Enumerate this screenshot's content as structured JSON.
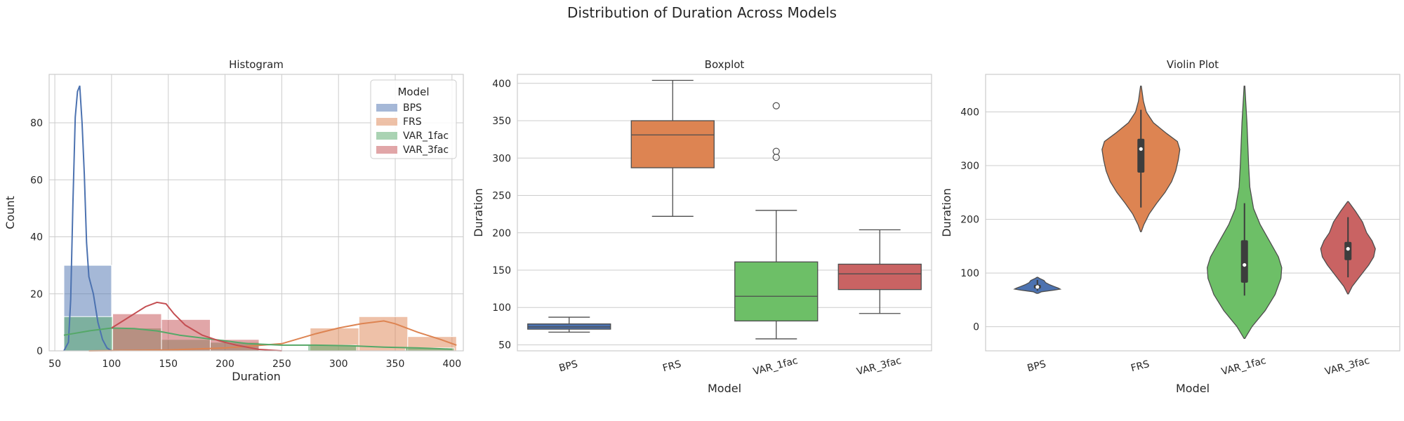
{
  "figure": {
    "title": "Distribution of Duration Across Models"
  },
  "colors": {
    "BPS": "#4c72b0",
    "FRS": "#dd8452",
    "VAR_1fac": "#55a868",
    "VAR_3fac": "#c44e52",
    "box_BPS": "#4c72b0",
    "box_FRS": "#dd8452",
    "box_VAR_1fac": "#6dbf67",
    "box_VAR_3fac": "#c96363",
    "grid": "#cccccc",
    "line": "#4d4d4d"
  },
  "chart_data": [
    {
      "type": "histogram",
      "title": "Histogram",
      "xlabel": "Duration",
      "ylabel": "Count",
      "xlim": [
        45,
        410
      ],
      "ylim": [
        0,
        97
      ],
      "xticks": [
        50,
        100,
        150,
        200,
        250,
        300,
        350,
        400
      ],
      "yticks": [
        0,
        20,
        40,
        60,
        80
      ],
      "grid": true,
      "legend": {
        "title": "Model",
        "position": "top-right",
        "entries": [
          "BPS",
          "FRS",
          "VAR_1fac",
          "VAR_3fac"
        ]
      },
      "series": [
        {
          "name": "BPS",
          "bins": [
            {
              "x0": 58,
              "x1": 100,
              "count": 30
            }
          ],
          "kde": [
            [
              58,
              0
            ],
            [
              62,
              3
            ],
            [
              64,
              18
            ],
            [
              66,
              52
            ],
            [
              68,
              82
            ],
            [
              70,
              91
            ],
            [
              72,
              93
            ],
            [
              74,
              80
            ],
            [
              76,
              62
            ],
            [
              78,
              38
            ],
            [
              80,
              26
            ],
            [
              84,
              20
            ],
            [
              88,
              10
            ],
            [
              92,
              4
            ],
            [
              96,
              1
            ],
            [
              100,
              0
            ]
          ]
        },
        {
          "name": "FRS",
          "bins": [
            {
              "x0": 275,
              "x1": 318,
              "count": 8
            },
            {
              "x0": 318,
              "x1": 361,
              "count": 12
            },
            {
              "x0": 361,
              "x1": 404,
              "count": 5
            }
          ],
          "kde": [
            [
              80,
              0
            ],
            [
              150,
              0.3
            ],
            [
              200,
              1
            ],
            [
              250,
              2.5
            ],
            [
              280,
              6
            ],
            [
              300,
              8
            ],
            [
              320,
              9.5
            ],
            [
              340,
              10.5
            ],
            [
              350,
              9.5
            ],
            [
              370,
              6.5
            ],
            [
              390,
              4
            ],
            [
              404,
              2
            ]
          ]
        },
        {
          "name": "VAR_1fac",
          "bins": [
            {
              "x0": 58,
              "x1": 101,
              "count": 12
            },
            {
              "x0": 101,
              "x1": 144,
              "count": 8
            },
            {
              "x0": 144,
              "x1": 187,
              "count": 4
            },
            {
              "x0": 187,
              "x1": 230,
              "count": 3
            },
            {
              "x0": 273,
              "x1": 316,
              "count": 2
            },
            {
              "x0": 359,
              "x1": 402,
              "count": 1
            }
          ],
          "kde": [
            [
              58,
              5.5
            ],
            [
              80,
              7
            ],
            [
              100,
              8
            ],
            [
              120,
              7.8
            ],
            [
              140,
              7
            ],
            [
              160,
              5.5
            ],
            [
              180,
              4.5
            ],
            [
              200,
              3.5
            ],
            [
              220,
              2.5
            ],
            [
              250,
              2
            ],
            [
              280,
              2
            ],
            [
              310,
              1.8
            ],
            [
              340,
              1.3
            ],
            [
              370,
              1
            ],
            [
              400,
              0.6
            ]
          ]
        },
        {
          "name": "VAR_3fac",
          "bins": [
            {
              "x0": 101,
              "x1": 144,
              "count": 13
            },
            {
              "x0": 144,
              "x1": 187,
              "count": 11
            },
            {
              "x0": 187,
              "x1": 230,
              "count": 4
            }
          ],
          "kde": [
            [
              100,
              8
            ],
            [
              110,
              10.5
            ],
            [
              120,
              13
            ],
            [
              130,
              15.5
            ],
            [
              140,
              17
            ],
            [
              148,
              16.5
            ],
            [
              155,
              13
            ],
            [
              165,
              9
            ],
            [
              180,
              5.5
            ],
            [
              195,
              3.5
            ],
            [
              210,
              2
            ],
            [
              230,
              0.5
            ],
            [
              250,
              0
            ]
          ]
        }
      ]
    },
    {
      "type": "box",
      "title": "Boxplot",
      "xlabel": "Model",
      "ylabel": "Duration",
      "ylim": [
        42,
        412
      ],
      "yticks": [
        50,
        100,
        150,
        200,
        250,
        300,
        350,
        400
      ],
      "categories": [
        "BPS",
        "FRS",
        "VAR_1fac",
        "VAR_3fac"
      ],
      "grid": true,
      "boxes": [
        {
          "name": "BPS",
          "whislo": 67,
          "q1": 71,
          "med": 74,
          "q3": 78,
          "whishi": 87,
          "fliers": []
        },
        {
          "name": "FRS",
          "whislo": 222,
          "q1": 287,
          "med": 331,
          "q3": 350,
          "whishi": 404,
          "fliers": []
        },
        {
          "name": "VAR_1fac",
          "whislo": 58,
          "q1": 82,
          "med": 115,
          "q3": 161,
          "whishi": 230,
          "fliers": [
            301,
            309,
            370
          ]
        },
        {
          "name": "VAR_3fac",
          "whislo": 92,
          "q1": 124,
          "med": 145,
          "q3": 158,
          "whishi": 204,
          "fliers": []
        }
      ]
    },
    {
      "type": "violin",
      "title": "Violin Plot",
      "xlabel": "Model",
      "ylabel": "Duration",
      "ylim": [
        -45,
        470
      ],
      "yticks": [
        0,
        100,
        200,
        300,
        400
      ],
      "categories": [
        "BPS",
        "FRS",
        "VAR_1fac",
        "VAR_3fac"
      ],
      "grid": true,
      "violins": [
        {
          "name": "BPS",
          "profile": [
            [
              62,
              0.02
            ],
            [
              65,
              0.1
            ],
            [
              68,
              0.4
            ],
            [
              70,
              0.55
            ],
            [
              72,
              0.5
            ],
            [
              75,
              0.4
            ],
            [
              78,
              0.3
            ],
            [
              82,
              0.2
            ],
            [
              86,
              0.16
            ],
            [
              90,
              0.05
            ],
            [
              92,
              0.01
            ]
          ],
          "q1": 71,
          "med": 74,
          "q3": 78,
          "whislo": 67,
          "whishi": 87
        },
        {
          "name": "FRS",
          "profile": [
            [
              177,
              0.01
            ],
            [
              190,
              0.07
            ],
            [
              210,
              0.2
            ],
            [
              230,
              0.38
            ],
            [
              250,
              0.58
            ],
            [
              270,
              0.74
            ],
            [
              290,
              0.84
            ],
            [
              310,
              0.9
            ],
            [
              330,
              0.94
            ],
            [
              345,
              0.88
            ],
            [
              360,
              0.62
            ],
            [
              380,
              0.3
            ],
            [
              400,
              0.13
            ],
            [
              420,
              0.06
            ],
            [
              448,
              0.01
            ]
          ],
          "q1": 287,
          "med": 331,
          "q3": 350,
          "whislo": 222,
          "whishi": 404
        },
        {
          "name": "VAR_1fac",
          "profile": [
            [
              -22,
              0.01
            ],
            [
              0,
              0.18
            ],
            [
              30,
              0.5
            ],
            [
              60,
              0.74
            ],
            [
              90,
              0.88
            ],
            [
              110,
              0.9
            ],
            [
              130,
              0.82
            ],
            [
              160,
              0.6
            ],
            [
              190,
              0.38
            ],
            [
              220,
              0.22
            ],
            [
              260,
              0.13
            ],
            [
              300,
              0.1
            ],
            [
              340,
              0.08
            ],
            [
              380,
              0.06
            ],
            [
              420,
              0.03
            ],
            [
              448,
              0.01
            ]
          ],
          "q1": 82,
          "med": 115,
          "q3": 161,
          "whislo": 58,
          "whishi": 230
        },
        {
          "name": "VAR_3fac",
          "profile": [
            [
              61,
              0.01
            ],
            [
              75,
              0.1
            ],
            [
              95,
              0.3
            ],
            [
              115,
              0.5
            ],
            [
              130,
              0.62
            ],
            [
              145,
              0.66
            ],
            [
              160,
              0.58
            ],
            [
              175,
              0.45
            ],
            [
              195,
              0.35
            ],
            [
              215,
              0.18
            ],
            [
              233,
              0.01
            ]
          ],
          "q1": 124,
          "med": 145,
          "q3": 158,
          "whislo": 92,
          "whishi": 204
        }
      ]
    }
  ]
}
